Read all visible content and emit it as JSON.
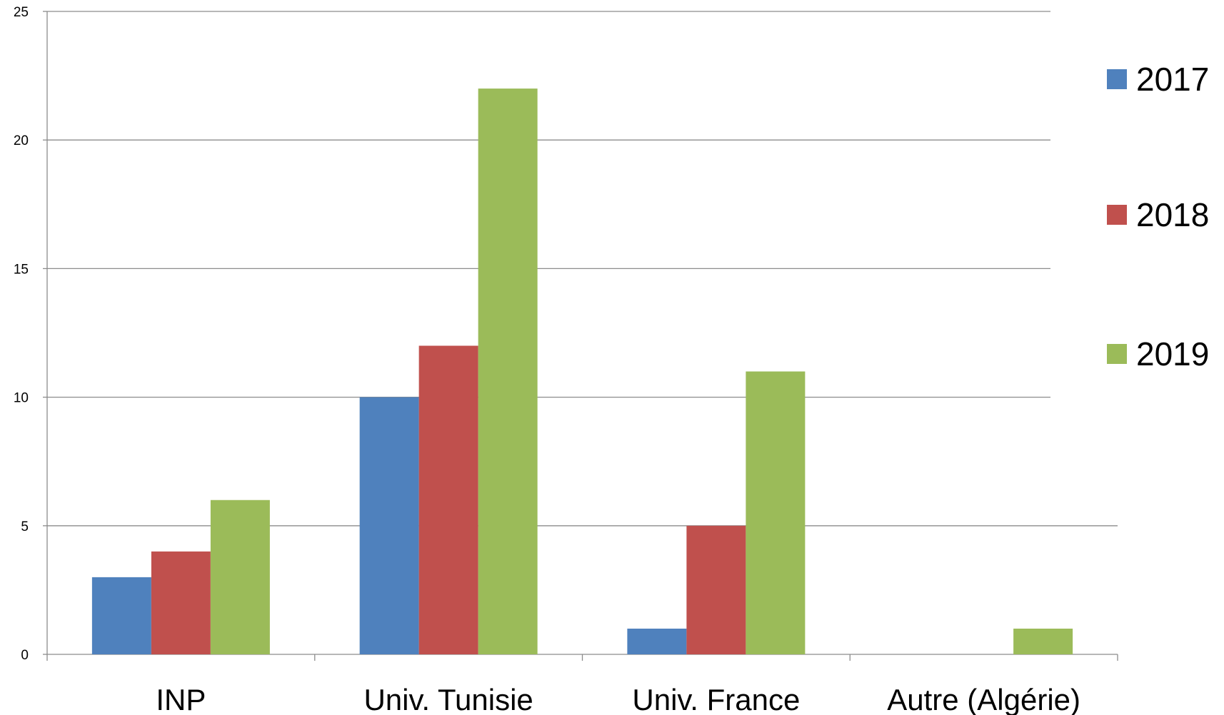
{
  "chart_data": {
    "type": "bar",
    "title": "",
    "xlabel": "",
    "ylabel": "",
    "categories": [
      "INP",
      "Univ. Tunisie",
      "Univ. France",
      "Autre (Algérie)"
    ],
    "series": [
      {
        "name": "2017",
        "color": "#4F81BD",
        "values": [
          3,
          10,
          1,
          0
        ]
      },
      {
        "name": "2018",
        "color": "#C0504D",
        "values": [
          4,
          12,
          5,
          0
        ]
      },
      {
        "name": "2019",
        "color": "#9BBB59",
        "values": [
          6,
          22,
          11,
          1
        ]
      }
    ],
    "ylim": [
      0,
      25
    ],
    "yticks": [
      0,
      5,
      10,
      15,
      20,
      25
    ],
    "grid": true,
    "legend_position": "right"
  }
}
